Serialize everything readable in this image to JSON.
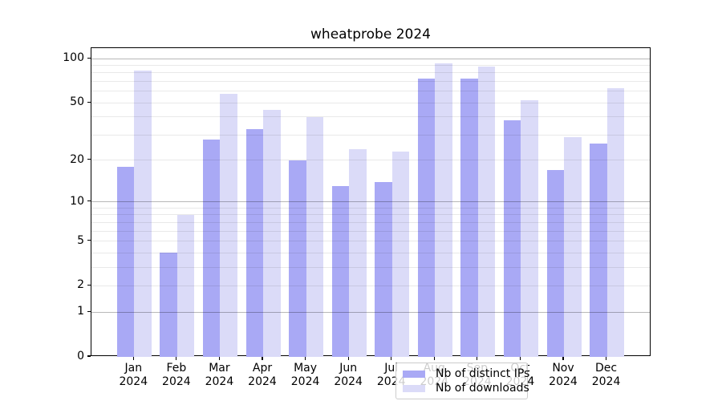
{
  "title": "wheatprobe 2024",
  "chart_data": {
    "type": "bar",
    "title": "wheatprobe 2024",
    "categories": [
      "Jan",
      "Feb",
      "Mar",
      "Apr",
      "May",
      "Jun",
      "Jul",
      "Aug",
      "Sep",
      "Oct",
      "Nov",
      "Dec"
    ],
    "year": "2024",
    "series": [
      {
        "name": "Nb of distinct IPs",
        "color": "#a9a9f5",
        "values": [
          18,
          4,
          28,
          33,
          20,
          13,
          14,
          73,
          73,
          38,
          17,
          26
        ]
      },
      {
        "name": "Nb of downloads",
        "color": "#dbdbf8",
        "values": [
          83,
          8,
          58,
          45,
          40,
          24,
          23,
          93,
          88,
          52,
          29,
          63
        ]
      }
    ],
    "y_scale": "log10(1+value)",
    "y_axis_max": 118,
    "y_ticks": [
      0,
      1,
      2,
      5,
      10,
      20,
      50,
      100
    ],
    "major_gridlines": [
      1,
      10,
      100
    ],
    "minor_gridlines": [
      2,
      3,
      4,
      5,
      6,
      7,
      8,
      9,
      20,
      30,
      40,
      50,
      60,
      70,
      80,
      90
    ],
    "grid": true,
    "legend_position": "bottom-center-inside",
    "xlabel": "",
    "ylabel": ""
  }
}
